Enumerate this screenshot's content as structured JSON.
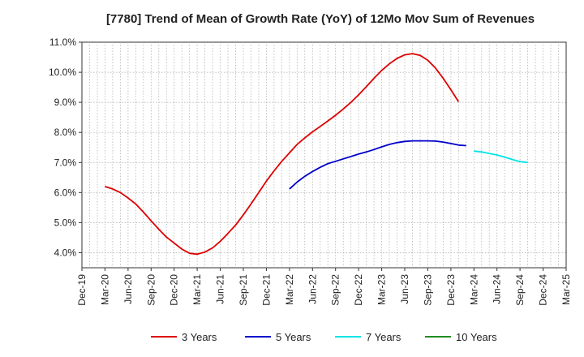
{
  "chart_data": {
    "type": "line",
    "title": "[7780]  Trend of Mean of Growth Rate (YoY) of 12Mo Mov Sum of Revenues",
    "xlabel": "",
    "ylabel": "",
    "ylim": [
      3.5,
      11.0
    ],
    "y_ticks": [
      4.0,
      5.0,
      6.0,
      7.0,
      8.0,
      9.0,
      10.0,
      11.0
    ],
    "y_tick_labels": [
      "4.0%",
      "5.0%",
      "6.0%",
      "7.0%",
      "8.0%",
      "9.0%",
      "10.0%",
      "11.0%"
    ],
    "x_tick_labels": [
      "Dec-19",
      "Mar-20",
      "Jun-20",
      "Sep-20",
      "Dec-20",
      "Mar-21",
      "Jun-21",
      "Sep-21",
      "Dec-21",
      "Mar-22",
      "Jun-22",
      "Sep-22",
      "Dec-22",
      "Mar-23",
      "Jun-23",
      "Sep-23",
      "Dec-23",
      "Mar-24",
      "Jun-24",
      "Sep-24",
      "Dec-24",
      "Mar-25"
    ],
    "grid": true,
    "legend_position": "bottom",
    "series": [
      {
        "name": "3 Years",
        "color": "#dd0000",
        "start_month_index": 3,
        "values": [
          6.2,
          6.12,
          6.0,
          5.82,
          5.62,
          5.35,
          5.06,
          4.78,
          4.52,
          4.32,
          4.12,
          3.98,
          3.95,
          4.02,
          4.16,
          4.38,
          4.64,
          4.92,
          5.26,
          5.62,
          6.0,
          6.38,
          6.72,
          7.04,
          7.32,
          7.6,
          7.82,
          8.02,
          8.2,
          8.38,
          8.57,
          8.78,
          9.0,
          9.25,
          9.52,
          9.8,
          10.06,
          10.28,
          10.46,
          10.58,
          10.62,
          10.56,
          10.4,
          10.14,
          9.8,
          9.42,
          9.02
        ]
      },
      {
        "name": "5 Years",
        "color": "#0000cc",
        "start_month_index": 27,
        "values": [
          6.12,
          6.35,
          6.54,
          6.7,
          6.84,
          6.96,
          7.04,
          7.12,
          7.2,
          7.28,
          7.35,
          7.43,
          7.52,
          7.6,
          7.66,
          7.7,
          7.72,
          7.72,
          7.72,
          7.71,
          7.68,
          7.63,
          7.58,
          7.56
        ]
      },
      {
        "name": "7 Years",
        "color": "#00e5e5",
        "start_month_index": 51,
        "values": [
          7.38,
          7.35,
          7.3,
          7.25,
          7.18,
          7.1,
          7.03,
          7.0
        ]
      },
      {
        "name": "10 Years",
        "color": "#228b22",
        "start_month_index": 0,
        "values": []
      }
    ]
  }
}
